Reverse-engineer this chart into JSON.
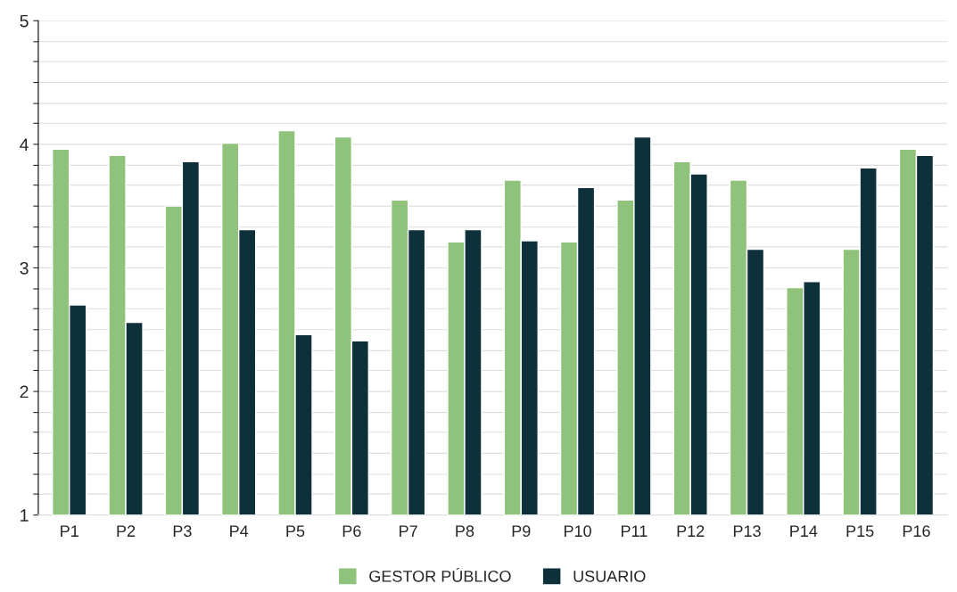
{
  "chart_data": {
    "type": "bar",
    "categories": [
      "P1",
      "P2",
      "P3",
      "P4",
      "P5",
      "P6",
      "P7",
      "P8",
      "P9",
      "P10",
      "P11",
      "P12",
      "P13",
      "P14",
      "P15",
      "P16"
    ],
    "series": [
      {
        "name": "GESTOR PÚBLICO",
        "color": "#8fc27a",
        "values": [
          3.96,
          3.91,
          3.5,
          4.01,
          4.11,
          4.06,
          3.55,
          3.21,
          3.71,
          3.21,
          3.55,
          3.86,
          3.71,
          2.84,
          3.15,
          3.96
        ]
      },
      {
        "name": "USUARIO",
        "color": "#0d303a",
        "values": [
          2.7,
          2.56,
          3.86,
          3.31,
          2.46,
          2.41,
          3.31,
          3.31,
          3.22,
          3.65,
          4.06,
          3.76,
          3.15,
          2.89,
          3.81,
          3.91
        ]
      }
    ],
    "ylim": [
      1,
      5
    ],
    "yticks": [
      1,
      {
        "value": 1.17,
        "label": null
      },
      {
        "value": 1.33,
        "label": null
      },
      {
        "value": 1.5,
        "label": null
      },
      {
        "value": 1.67,
        "label": null
      },
      {
        "value": 1.83,
        "label": null
      },
      2,
      {
        "value": 2.17,
        "label": null
      },
      {
        "value": 2.33,
        "label": null
      },
      {
        "value": 2.5,
        "label": null
      },
      {
        "value": 2.67,
        "label": null
      },
      {
        "value": 2.83,
        "label": null
      },
      3,
      {
        "value": 3.17,
        "label": null
      },
      {
        "value": 3.33,
        "label": null
      },
      {
        "value": 3.5,
        "label": null
      },
      {
        "value": 3.67,
        "label": null
      },
      {
        "value": 3.83,
        "label": null
      },
      4,
      {
        "value": 4.17,
        "label": null
      },
      {
        "value": 4.33,
        "label": null
      },
      {
        "value": 4.5,
        "label": null
      },
      {
        "value": 4.67,
        "label": null
      },
      {
        "value": 4.83,
        "label": null
      },
      5
    ],
    "grid": "y",
    "legend": "bottom"
  }
}
